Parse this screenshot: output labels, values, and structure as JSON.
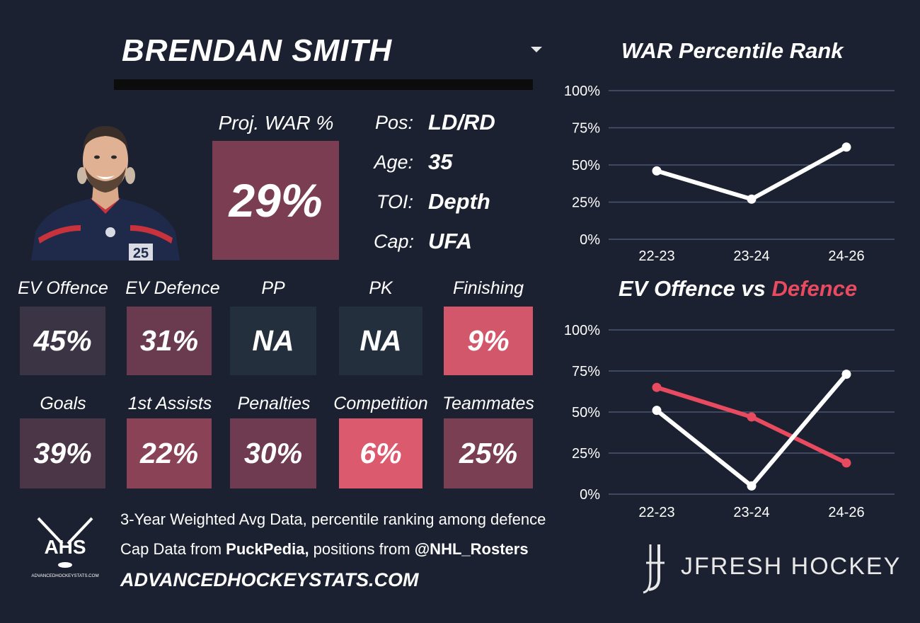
{
  "header": {
    "player_name": "BRENDAN SMITH"
  },
  "projection": {
    "label": "Proj. WAR %",
    "value": "29%",
    "color": "#7a3d52"
  },
  "info": [
    {
      "label": "Pos:",
      "value": "LD/RD"
    },
    {
      "label": "Age:",
      "value": "35"
    },
    {
      "label": "TOI:",
      "value": "Depth"
    },
    {
      "label": "Cap:",
      "value": "UFA"
    }
  ],
  "tiles_row1": [
    {
      "label": "EV Offence",
      "value": "45%",
      "color": "#3a3444"
    },
    {
      "label": "EV Defence",
      "value": "31%",
      "color": "#6a3b4f"
    },
    {
      "label": "PP",
      "value": "NA",
      "color": "#242f3e"
    },
    {
      "label": "PK",
      "value": "NA",
      "color": "#242f3e"
    },
    {
      "label": "Finishing",
      "value": "9%",
      "color": "#d2576b"
    }
  ],
  "tiles_row2": [
    {
      "label": "Goals",
      "value": "39%",
      "color": "#4a3646"
    },
    {
      "label": "1st Assists",
      "value": "22%",
      "color": "#8a4257"
    },
    {
      "label": "Penalties",
      "value": "30%",
      "color": "#6e3b50"
    },
    {
      "label": "Competition",
      "value": "6%",
      "color": "#dc5a6e"
    },
    {
      "label": "Teammates",
      "value": "25%",
      "color": "#7b3f53"
    }
  ],
  "footer": {
    "line1": "3-Year Weighted Avg Data, percentile ranking among defence",
    "line2_prefix": "Cap Data from ",
    "line2_bold1": "PuckPedia,",
    "line2_mid": " positions from ",
    "line2_bold2": "@NHL_Rosters",
    "site": "ADVANCEDHOCKEYSTATS.COM",
    "ahs_logo_text": "AHS",
    "ahs_logo_sub": "ADVANCEDHOCKEYSTATS.COM",
    "brand": "JFRESH HOCKEY"
  },
  "chart_data": [
    {
      "type": "line",
      "title": "WAR Percentile Rank",
      "categories": [
        "22-23",
        "23-24",
        "24-26"
      ],
      "series": [
        {
          "values": [
            46,
            27,
            62
          ],
          "color": "#ffffff"
        }
      ],
      "y_ticks": [
        "0%",
        "25%",
        "50%",
        "75%",
        "100%"
      ],
      "ylim": [
        0,
        100
      ],
      "grid": true
    },
    {
      "type": "line",
      "title_part1": "EV Offence vs ",
      "title_part2": "Defence",
      "title_part2_color": "#e84a5f",
      "categories": [
        "22-23",
        "23-24",
        "24-26"
      ],
      "series": [
        {
          "values": [
            51,
            5,
            73
          ],
          "color": "#ffffff"
        },
        {
          "values": [
            65,
            47,
            19
          ],
          "color": "#e84a5f"
        }
      ],
      "y_ticks": [
        "0%",
        "25%",
        "50%",
        "75%",
        "100%"
      ],
      "ylim": [
        0,
        100
      ],
      "grid": true
    }
  ]
}
